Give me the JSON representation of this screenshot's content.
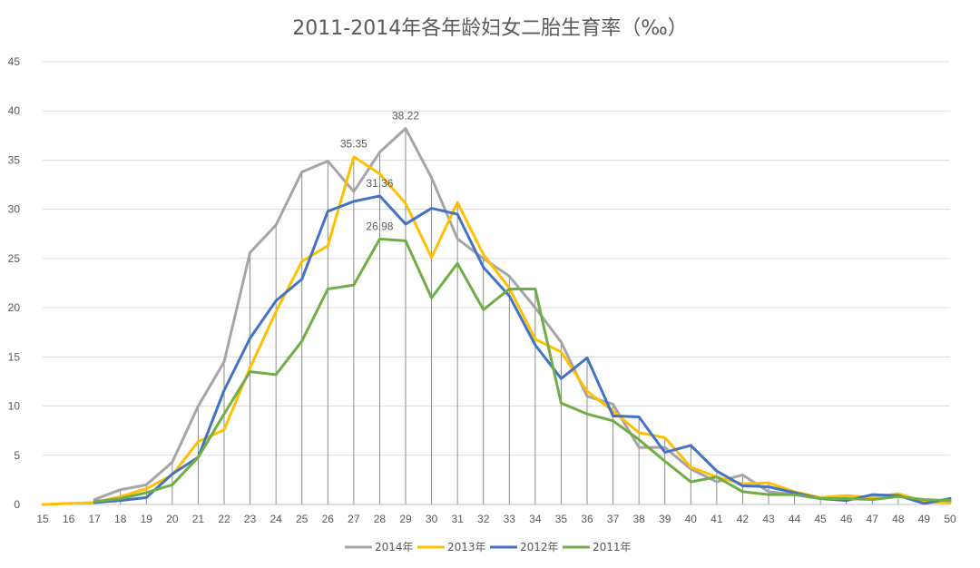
{
  "chart_data": {
    "type": "line",
    "title": "2011-2014年各年龄妇女二胎生育率（‰）",
    "xlabel": "",
    "ylabel": "",
    "ylim": [
      0,
      45
    ],
    "yticks": [
      0,
      5,
      10,
      15,
      20,
      25,
      30,
      35,
      40,
      45
    ],
    "grid": true,
    "legend_position": "bottom",
    "categories": [
      "15",
      "16",
      "17",
      "18",
      "19",
      "20",
      "21",
      "22",
      "23",
      "24",
      "25",
      "26",
      "27",
      "28",
      "29",
      "30",
      "31",
      "32",
      "33",
      "34",
      "35",
      "36",
      "37",
      "38",
      "39",
      "40",
      "41",
      "42",
      "43",
      "44",
      "45",
      "46",
      "47",
      "48",
      "49",
      "50"
    ],
    "series": [
      {
        "name": "2014年",
        "color": "#a5a5a5",
        "values": [
          null,
          null,
          0.5,
          1.5,
          2.0,
          4.3,
          10.0,
          14.5,
          25.6,
          28.4,
          33.8,
          34.9,
          31.8,
          35.8,
          38.22,
          33.2,
          27.0,
          25.0,
          23.2,
          20.0,
          16.5,
          11.0,
          10.2,
          5.8,
          5.8,
          3.6,
          2.3,
          3.0,
          1.3,
          1.0,
          0.6,
          0.5,
          0.7,
          0.9,
          0.2,
          0.3
        ]
      },
      {
        "name": "2013年",
        "color": "#ffc000",
        "values": [
          0.0,
          0.1,
          0.2,
          0.8,
          1.6,
          3.0,
          6.4,
          7.6,
          13.9,
          19.6,
          24.7,
          26.3,
          35.35,
          33.6,
          30.6,
          25.1,
          30.7,
          25.4,
          22.0,
          16.8,
          15.5,
          11.5,
          9.5,
          7.3,
          6.8,
          3.8,
          2.8,
          2.1,
          2.2,
          1.3,
          0.7,
          0.9,
          0.7,
          1.1,
          0.3,
          0.2
        ]
      },
      {
        "name": "2012年",
        "color": "#4472c4",
        "values": [
          null,
          null,
          0.2,
          0.4,
          0.7,
          3.1,
          4.8,
          11.6,
          16.9,
          20.7,
          22.9,
          29.8,
          30.8,
          31.36,
          28.5,
          30.1,
          29.5,
          24.1,
          21.2,
          16.2,
          12.8,
          14.9,
          9.0,
          8.9,
          5.3,
          6.0,
          3.4,
          1.9,
          1.8,
          1.2,
          0.6,
          0.4,
          1.0,
          0.9,
          0.1,
          0.6
        ]
      },
      {
        "name": "2011年",
        "color": "#70ad47",
        "values": [
          null,
          null,
          0.3,
          0.6,
          1.2,
          2.0,
          4.8,
          9.2,
          13.5,
          13.2,
          16.6,
          21.9,
          22.3,
          26.98,
          26.8,
          21.0,
          24.5,
          19.8,
          21.9,
          21.9,
          10.3,
          9.2,
          8.5,
          6.6,
          4.4,
          2.3,
          2.8,
          1.3,
          1.0,
          1.0,
          0.6,
          0.6,
          0.5,
          0.8,
          0.5,
          0.4
        ]
      }
    ],
    "data_labels": [
      {
        "series": 0,
        "index": 14,
        "text": "38.22"
      },
      {
        "series": 1,
        "index": 12,
        "text": "35.35"
      },
      {
        "series": 2,
        "index": 13,
        "text": "31.36"
      },
      {
        "series": 3,
        "index": 13,
        "text": "26.98"
      }
    ]
  }
}
